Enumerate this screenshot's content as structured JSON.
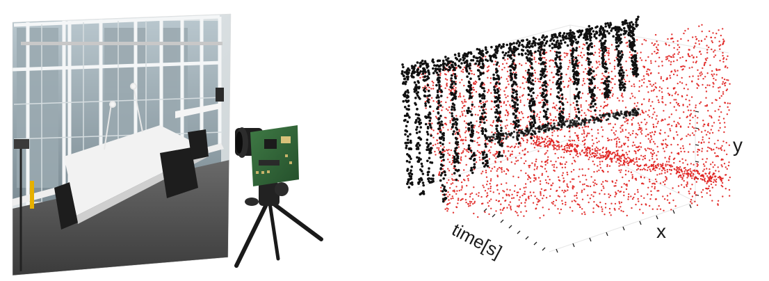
{
  "panels": {
    "left": {
      "scene": "office-room-photo",
      "device": "event-camera-on-tripod"
    },
    "right": {
      "plot": "3d-event-point-cloud",
      "point_colors": {
        "positive": "#e0201e",
        "negative": "#111111"
      },
      "axis_labels": {
        "time": "time[s]",
        "x": "x",
        "y": "y"
      }
    }
  }
}
